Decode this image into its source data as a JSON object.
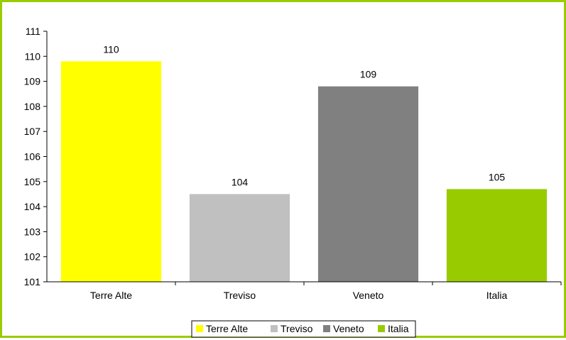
{
  "chart_data": {
    "type": "bar",
    "categories": [
      "Terre Alte",
      "Treviso",
      "Veneto",
      "Italia"
    ],
    "values": [
      109.8,
      104.5,
      108.8,
      104.7
    ],
    "data_labels": [
      "110",
      "104",
      "109",
      "105"
    ],
    "colors": [
      "#ffff00",
      "#c0c0c0",
      "#808080",
      "#99cc00"
    ],
    "y_ticks": [
      "101",
      "102",
      "103",
      "104",
      "105",
      "106",
      "107",
      "108",
      "109",
      "110",
      "111"
    ],
    "ylim": [
      101,
      111
    ],
    "grid": false,
    "legend": {
      "placement": "bottom",
      "entries": [
        "Terre Alte",
        "Treviso",
        "Veneto",
        "Italia"
      ]
    }
  }
}
